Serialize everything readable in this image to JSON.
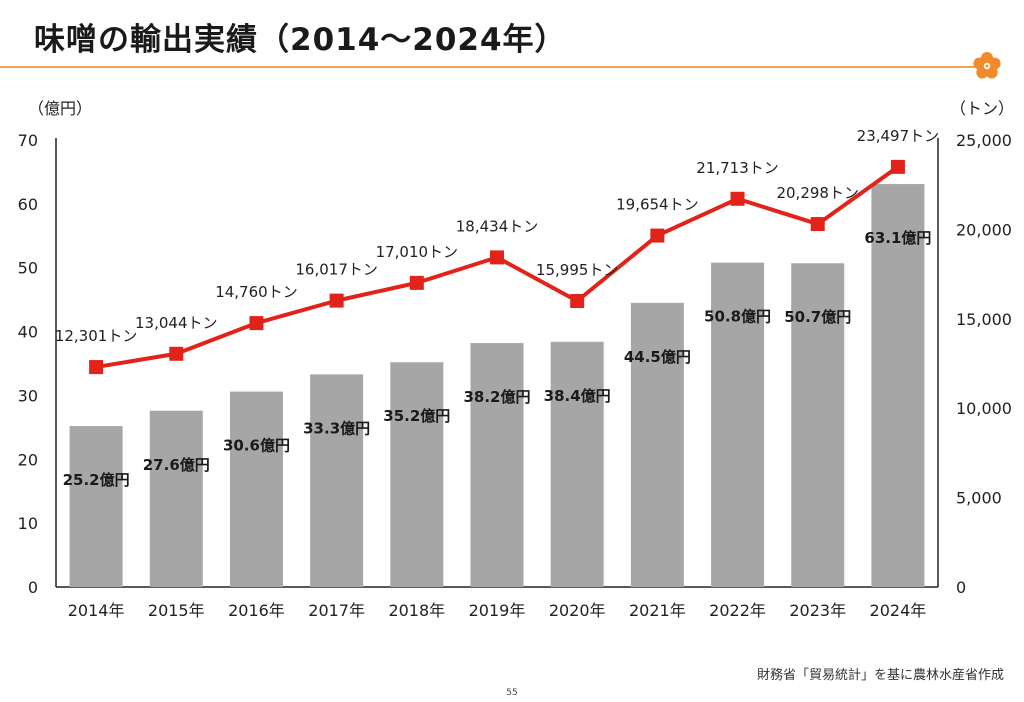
{
  "slide": {
    "title": "味噌の輸出実績（2014～2024年）",
    "source": "財務省「貿易統計」を基に農林水産省作成",
    "page_number": "55"
  },
  "colors": {
    "accent_rule": "#f0a050",
    "bar": "#a6a6a7",
    "line": "#e2231a",
    "marker": "#e2231a",
    "logo": "#f08a2a"
  },
  "chart_data": {
    "type": "bar+line",
    "categories": [
      "2014年",
      "2015年",
      "2016年",
      "2017年",
      "2018年",
      "2019年",
      "2020年",
      "2021年",
      "2022年",
      "2023年",
      "2024年"
    ],
    "series": [
      {
        "axis": "left",
        "type": "bar",
        "values": [
          25.2,
          27.6,
          30.6,
          33.3,
          35.2,
          38.2,
          38.4,
          44.5,
          50.8,
          50.7,
          63.1
        ],
        "labels": [
          "25.2億円",
          "27.6億円",
          "30.6億円",
          "33.3億円",
          "35.2億円",
          "38.2億円",
          "38.4億円",
          "44.5億円",
          "50.8億円",
          "50.7億円",
          "63.1億円"
        ]
      },
      {
        "axis": "right",
        "type": "line",
        "values": [
          12301,
          13044,
          14760,
          16017,
          17010,
          18434,
          15995,
          19654,
          21713,
          20298,
          23497
        ],
        "labels": [
          "12,301トン",
          "13,044トン",
          "14,760トン",
          "16,017トン",
          "17,010トン",
          "18,434トン",
          "15,995トン",
          "19,654トン",
          "21,713トン",
          "20,298トン",
          "23,497トン"
        ]
      }
    ],
    "y_left": {
      "unit_label": "（億円）",
      "range": [
        0,
        70
      ],
      "ticks": [
        "0",
        "10",
        "20",
        "30",
        "40",
        "50",
        "60",
        "70"
      ]
    },
    "y_right": {
      "unit_label": "（トン）",
      "range": [
        0,
        25000
      ],
      "ticks": [
        "0",
        "5,000",
        "10,000",
        "15,000",
        "20,000",
        "25,000"
      ]
    },
    "grid": false,
    "legend": "none"
  }
}
